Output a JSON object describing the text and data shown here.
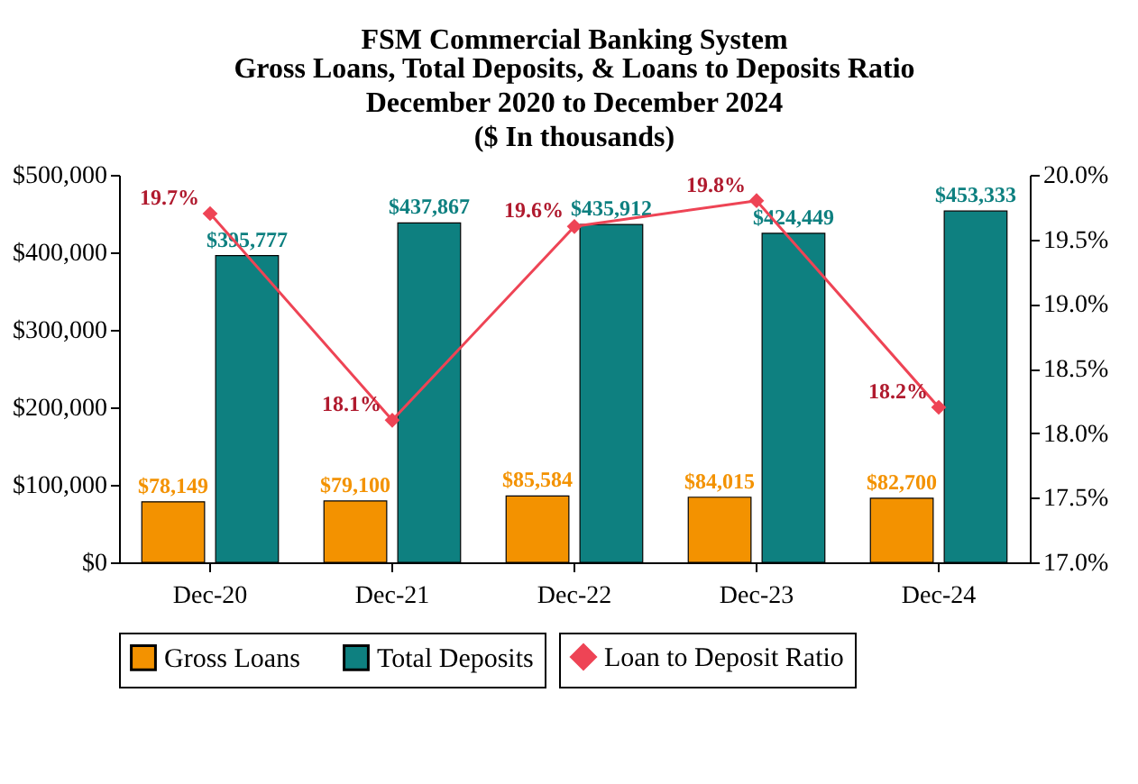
{
  "chart_data": {
    "type": "bar",
    "title": "FSM Commercial Banking System",
    "subtitle": "Gross Loans, Total Deposits, & Loans to Deposits Ratio\nDecember 2020 to December 2024\n($ In thousands)",
    "categories": [
      "Dec-20",
      "Dec-21",
      "Dec-22",
      "Dec-23",
      "Dec-24"
    ],
    "series": [
      {
        "name": "Gross Loans",
        "color": "#f39200",
        "values": [
          78149,
          79100,
          85584,
          84015,
          82700
        ],
        "value_labels": [
          "$78,149",
          "$79,100",
          "$85,584",
          "$84,015",
          "$82,700"
        ]
      },
      {
        "name": "Total Deposits",
        "color": "#0e8080",
        "values": [
          395777,
          437867,
          435912,
          424449,
          453333
        ],
        "value_labels": [
          "$395,777",
          "$437,867",
          "$435,912",
          "$424,449",
          "$453,333"
        ]
      },
      {
        "name": "Loan to Deposit Ratio",
        "type": "line",
        "axis": "y2",
        "color": "#ee4455",
        "marker": "diamond",
        "values": [
          19.7,
          18.1,
          19.6,
          19.8,
          18.2
        ],
        "value_labels": [
          "19.7%",
          "18.1%",
          "19.6%",
          "19.8%",
          "18.2%"
        ]
      }
    ],
    "ylim": [
      0,
      500000
    ],
    "yticks": [
      {
        "value": 0,
        "label": "$0"
      },
      {
        "value": 100000,
        "label": "$100,000"
      },
      {
        "value": 200000,
        "label": "$200,000"
      },
      {
        "value": 300000,
        "label": "$300,000"
      },
      {
        "value": 400000,
        "label": "$400,000"
      },
      {
        "value": 500000,
        "label": "$500,000"
      }
    ],
    "y2lim": [
      17,
      20
    ],
    "y2ticks": [
      {
        "value": 17,
        "label": "17.0%"
      },
      {
        "value": 17.5,
        "label": "17.5%"
      },
      {
        "value": 18,
        "label": "18.0%"
      },
      {
        "value": 18.5,
        "label": "18.5%"
      },
      {
        "value": 19,
        "label": "19.0%"
      },
      {
        "value": 19.5,
        "label": "19.5%"
      },
      {
        "value": 20,
        "label": "20.0%"
      }
    ],
    "grid": false,
    "legend": "bottom"
  }
}
